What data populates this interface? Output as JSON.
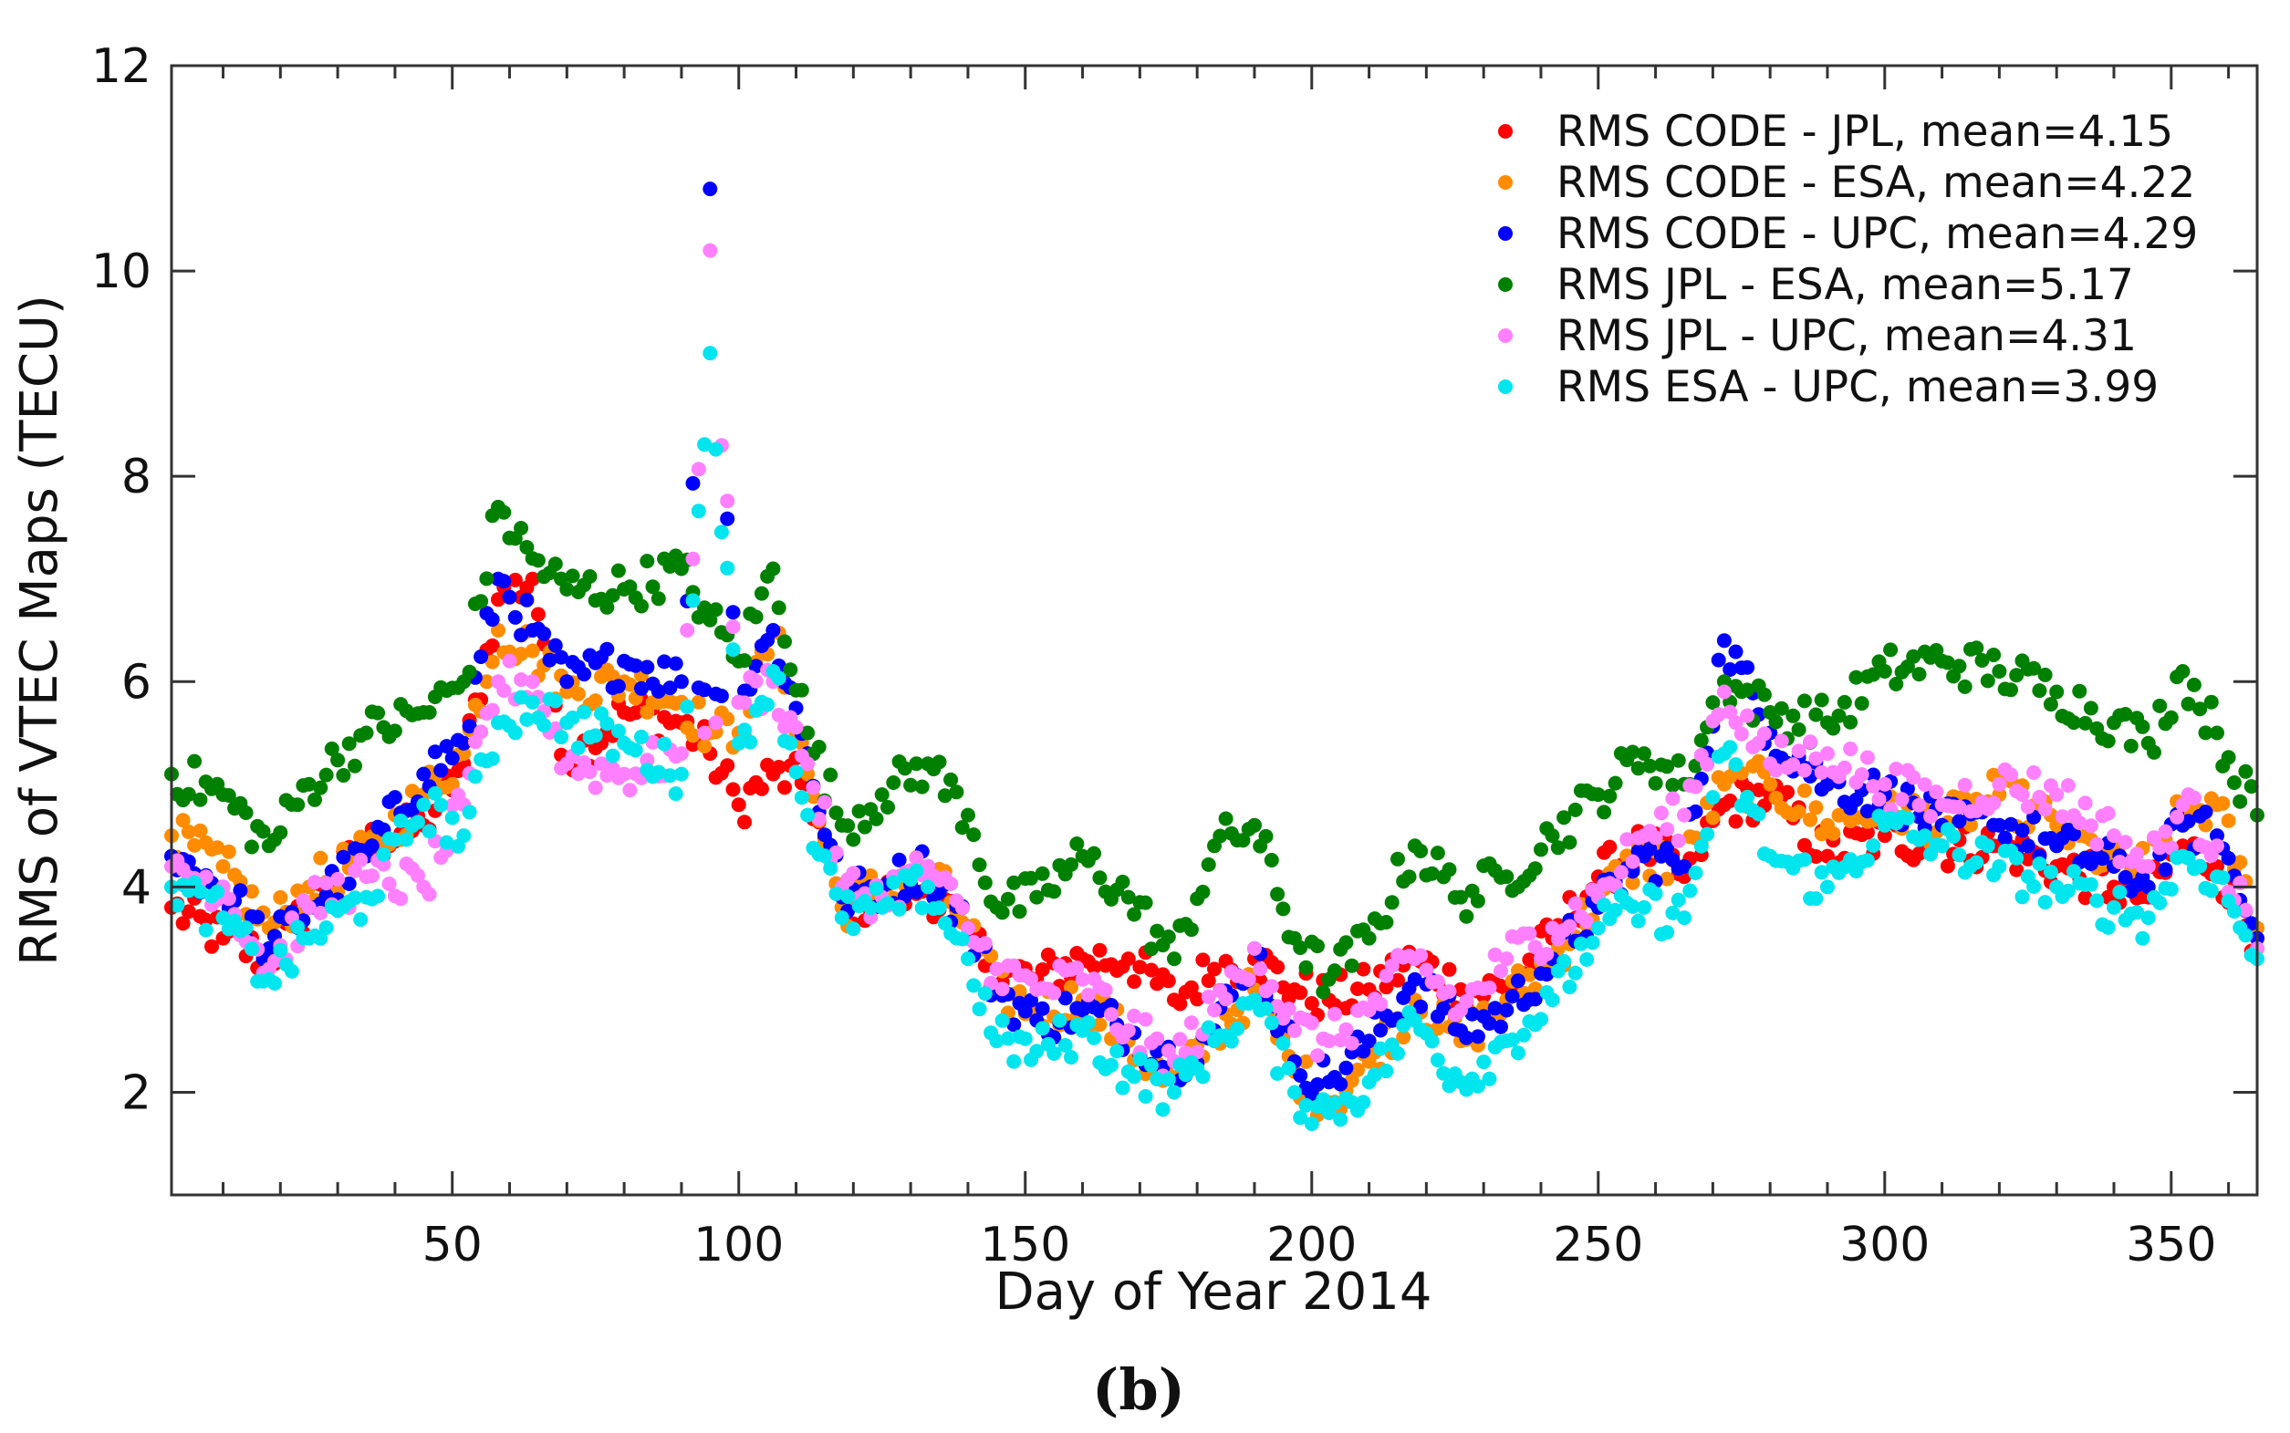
{
  "chart_data": {
    "type": "scatter",
    "title": "",
    "xlabel": "Day of Year 2014",
    "ylabel": "RMS of VTEC Maps (TECU)",
    "xlim": [
      1,
      365
    ],
    "ylim": [
      1,
      12
    ],
    "xticks": [
      50,
      100,
      150,
      200,
      250,
      300,
      350
    ],
    "yticks": [
      2,
      4,
      6,
      8,
      10,
      12
    ],
    "caption": "(b)",
    "legend_position": "top-right",
    "anchor_days": [
      1,
      10,
      18,
      25,
      35,
      45,
      52,
      58,
      64,
      70,
      80,
      90,
      95,
      100,
      106,
      112,
      118,
      125,
      133,
      140,
      145,
      152,
      160,
      168,
      176,
      183,
      190,
      197,
      203,
      210,
      218,
      226,
      234,
      242,
      250,
      258,
      265,
      272,
      280,
      290,
      300,
      310,
      320,
      330,
      340,
      346,
      352,
      358,
      365
    ],
    "series": [
      {
        "name": "RMS CODE - JPL, mean=4.15",
        "color": "#ff0000",
        "values": [
          3.8,
          3.5,
          3.3,
          3.8,
          4.4,
          4.6,
          5.2,
          6.8,
          7.0,
          5.2,
          5.7,
          5.6,
          5.3,
          4.8,
          5.1,
          5.0,
          3.8,
          3.9,
          4.0,
          3.5,
          3.2,
          3.1,
          3.3,
          3.3,
          2.9,
          3.2,
          3.3,
          3.0,
          2.9,
          3.0,
          3.3,
          3.0,
          3.0,
          3.5,
          4.1,
          4.4,
          4.1,
          4.8,
          4.9,
          4.3,
          4.5,
          4.4,
          4.4,
          4.2,
          4.0,
          3.9,
          4.4,
          4.2,
          3.5
        ]
      },
      {
        "name": "RMS CODE - ESA, mean=4.22",
        "color": "#ff8c00",
        "values": [
          4.5,
          4.2,
          3.6,
          4.0,
          4.3,
          4.9,
          5.3,
          6.5,
          6.3,
          5.9,
          6.0,
          5.8,
          5.5,
          5.5,
          6.5,
          5.1,
          3.8,
          4.0,
          4.2,
          3.6,
          3.0,
          2.8,
          2.9,
          2.5,
          2.0,
          2.6,
          3.0,
          2.2,
          1.9,
          2.3,
          2.9,
          2.5,
          2.9,
          3.3,
          3.9,
          4.3,
          4.2,
          5.0,
          5.0,
          4.6,
          4.8,
          4.6,
          4.9,
          4.6,
          4.2,
          4.2,
          4.7,
          4.8,
          3.6
        ]
      },
      {
        "name": "RMS CODE - UPC, mean=4.29",
        "color": "#0000ff",
        "values": [
          4.3,
          4.0,
          3.4,
          3.8,
          4.3,
          5.1,
          5.4,
          7.0,
          6.5,
          6.0,
          6.2,
          6.0,
          10.8,
          5.8,
          6.5,
          5.3,
          3.9,
          4.0,
          4.2,
          3.6,
          3.0,
          2.7,
          2.8,
          2.6,
          2.3,
          2.6,
          3.4,
          2.3,
          2.1,
          2.5,
          3.1,
          2.6,
          2.8,
          3.3,
          3.8,
          4.3,
          4.2,
          6.4,
          5.5,
          5.0,
          4.9,
          4.6,
          4.6,
          4.4,
          4.2,
          4.0,
          4.6,
          4.5,
          3.5
        ]
      },
      {
        "name": "RMS JPL - ESA, mean=5.17",
        "color": "#008000",
        "values": [
          5.1,
          4.9,
          4.4,
          5.0,
          5.5,
          5.7,
          6.0,
          7.7,
          7.2,
          6.9,
          6.9,
          7.1,
          6.6,
          6.2,
          7.1,
          5.5,
          4.6,
          4.9,
          5.2,
          4.7,
          3.8,
          3.9,
          4.3,
          3.9,
          3.3,
          4.4,
          4.6,
          3.5,
          3.1,
          3.5,
          4.4,
          3.9,
          4.1,
          4.5,
          4.9,
          5.3,
          5.0,
          6.0,
          5.7,
          5.6,
          6.1,
          6.2,
          6.1,
          5.9,
          5.6,
          5.4,
          6.1,
          5.5,
          4.7
        ]
      },
      {
        "name": "RMS JPL - UPC, mean=4.31",
        "color": "#ff80ff",
        "values": [
          4.2,
          4.0,
          3.2,
          3.8,
          4.1,
          4.0,
          4.8,
          6.0,
          6.0,
          5.2,
          5.1,
          5.3,
          10.2,
          5.8,
          6.0,
          5.2,
          4.0,
          3.9,
          4.2,
          3.6,
          3.2,
          3.0,
          3.1,
          2.6,
          2.3,
          2.8,
          3.4,
          2.6,
          2.5,
          2.8,
          3.3,
          2.8,
          3.3,
          3.6,
          3.9,
          4.5,
          4.7,
          5.9,
          5.2,
          5.3,
          5.0,
          4.8,
          5.0,
          4.9,
          4.5,
          4.2,
          4.8,
          4.4,
          3.4
        ]
      },
      {
        "name": "RMS ESA - UPC, mean=3.99",
        "color": "#00e5ee",
        "values": [
          4.0,
          3.7,
          3.1,
          3.5,
          3.9,
          4.8,
          4.5,
          5.6,
          5.8,
          5.6,
          5.4,
          5.1,
          9.2,
          5.4,
          6.1,
          4.7,
          3.7,
          3.8,
          4.0,
          3.3,
          2.5,
          2.4,
          2.6,
          2.2,
          2.0,
          2.5,
          2.9,
          2.0,
          1.8,
          2.1,
          2.7,
          2.1,
          2.5,
          2.9,
          3.6,
          3.8,
          3.7,
          5.3,
          4.3,
          4.0,
          4.6,
          4.4,
          4.2,
          4.0,
          3.8,
          3.7,
          4.3,
          4.1,
          3.3
        ]
      }
    ]
  }
}
